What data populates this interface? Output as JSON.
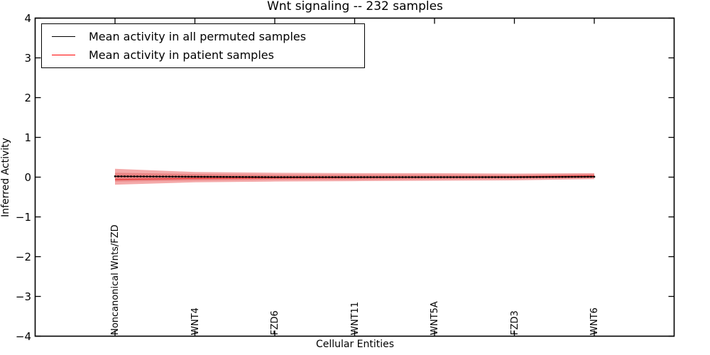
{
  "title": "Wnt signaling -- 232 samples",
  "axes": {
    "xlabel": "Cellular Entities",
    "ylabel": "Inferred Activity"
  },
  "legend": {
    "items": [
      {
        "label": "Mean activity in all permuted samples",
        "color": "#000000"
      },
      {
        "label": "Mean activity in patient samples",
        "color": "#ff0000"
      }
    ]
  },
  "chart_data": {
    "type": "line",
    "title": "Wnt signaling -- 232 samples",
    "xlabel": "Cellular Entities",
    "ylabel": "Inferred Activity",
    "xlim": [
      -1,
      7
    ],
    "ylim": [
      -4,
      4
    ],
    "grid": false,
    "legend_position": "upper-left",
    "yticks": [
      4,
      3,
      2,
      1,
      0,
      -1,
      -2,
      -3,
      -4
    ],
    "xtick_positions": [
      0,
      1,
      2,
      3,
      4,
      5,
      6
    ],
    "xtick_labels": [
      "Noncanonical Wnts/FZD",
      "WNT4",
      "FZD6",
      "WNT11",
      "WNT5A",
      "FZD3",
      "WNT6"
    ],
    "bands": [
      {
        "name": "patient-std-outer",
        "color": "#f4a9a9",
        "x": [
          0,
          1,
          2,
          3,
          4,
          5,
          6
        ],
        "upper": [
          0.21,
          0.13,
          0.11,
          0.1,
          0.1,
          0.09,
          0.1
        ],
        "lower": [
          -0.19,
          -0.13,
          -0.11,
          -0.1,
          -0.09,
          -0.08,
          -0.05
        ]
      },
      {
        "name": "patient-std-inner",
        "color": "#ea8585",
        "x": [
          0,
          1,
          2,
          3,
          4,
          5,
          6
        ],
        "upper": [
          0.11,
          0.08,
          0.06,
          0.06,
          0.06,
          0.05,
          0.08
        ],
        "lower": [
          -0.11,
          -0.08,
          -0.06,
          -0.06,
          -0.05,
          -0.04,
          -0.02
        ]
      }
    ],
    "series": [
      {
        "name": "Mean activity in patient samples",
        "color": "#e93535",
        "x": [
          0,
          1,
          2,
          3,
          4,
          5,
          6
        ],
        "values": [
          -0.06,
          -0.03,
          -0.02,
          -0.01,
          0.0,
          0.01,
          0.03
        ],
        "marker": "none"
      },
      {
        "name": "Mean activity in all permuted samples",
        "color": "#000000",
        "x": [
          0,
          1,
          2,
          3,
          4,
          5,
          6
        ],
        "values": [
          0.02,
          0.01,
          0.0,
          0.0,
          0.0,
          0.0,
          0.01
        ],
        "marker": "square"
      }
    ]
  }
}
